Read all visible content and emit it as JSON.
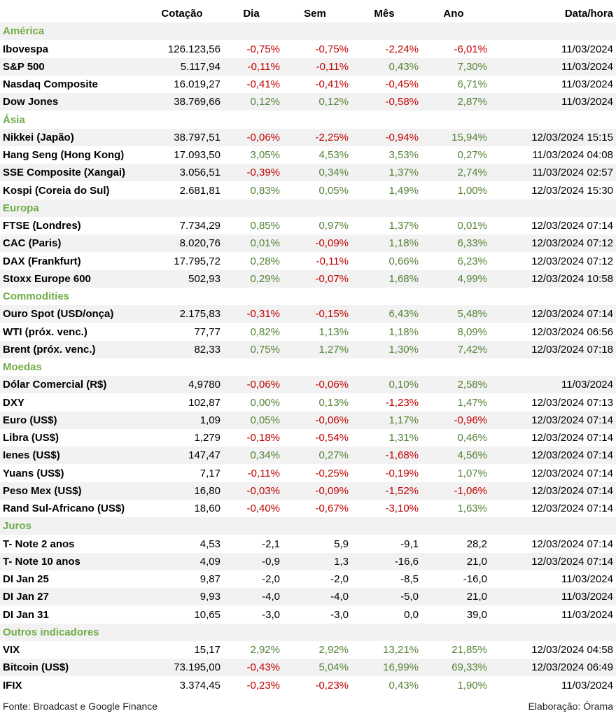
{
  "header": {
    "name": "",
    "cotacao": "Cotação",
    "dia": "Dia",
    "sem": "Sem",
    "mes": "Mês",
    "ano": "Ano",
    "datahora": "Data/hora"
  },
  "colors": {
    "positive": "#548235",
    "negative": "#c00000",
    "section": "#70ad47"
  },
  "sections": [
    {
      "title": "América",
      "rows": [
        {
          "name": "Ibovespa",
          "cotacao": "126.123,56",
          "dia": "-0,75%",
          "sem": "-0,75%",
          "mes": "-2,24%",
          "ano": "-6,01%",
          "datahora": "11/03/2024"
        },
        {
          "name": "S&P 500",
          "cotacao": "5.117,94",
          "dia": "-0,11%",
          "sem": "-0,11%",
          "mes": "0,43%",
          "ano": "7,30%",
          "datahora": "11/03/2024"
        },
        {
          "name": "Nasdaq Composite",
          "cotacao": "16.019,27",
          "dia": "-0,41%",
          "sem": "-0,41%",
          "mes": "-0,45%",
          "ano": "6,71%",
          "datahora": "11/03/2024"
        },
        {
          "name": "Dow Jones",
          "cotacao": "38.769,66",
          "dia": "0,12%",
          "sem": "0,12%",
          "mes": "-0,58%",
          "ano": "2,87%",
          "datahora": "11/03/2024"
        }
      ]
    },
    {
      "title": "Ásia",
      "rows": [
        {
          "name": "Nikkei (Japão)",
          "cotacao": "38.797,51",
          "dia": "-0,06%",
          "sem": "-2,25%",
          "mes": "-0,94%",
          "ano": "15,94%",
          "datahora": "12/03/2024 15:15"
        },
        {
          "name": "Hang Seng (Hong Kong)",
          "cotacao": "17.093,50",
          "dia": "3,05%",
          "sem": "4,53%",
          "mes": "3,53%",
          "ano": "0,27%",
          "datahora": "11/03/2024 04:08"
        },
        {
          "name": "SSE Composite (Xangai)",
          "cotacao": "3.056,51",
          "dia": "-0,39%",
          "sem": "0,34%",
          "mes": "1,37%",
          "ano": "2,74%",
          "datahora": "11/03/2024 02:57"
        },
        {
          "name": "Kospi (Coreia do Sul)",
          "cotacao": "2.681,81",
          "dia": "0,83%",
          "sem": "0,05%",
          "mes": "1,49%",
          "ano": "1,00%",
          "datahora": "12/03/2024 15:30"
        }
      ]
    },
    {
      "title": "Europa",
      "rows": [
        {
          "name": "FTSE (Londres)",
          "cotacao": "7.734,29",
          "dia": "0,85%",
          "sem": "0,97%",
          "mes": "1,37%",
          "ano": "0,01%",
          "datahora": "12/03/2024 07:14"
        },
        {
          "name": "CAC (Paris)",
          "cotacao": "8.020,76",
          "dia": "0,01%",
          "sem": "-0,09%",
          "mes": "1,18%",
          "ano": "6,33%",
          "datahora": "12/03/2024 07:12"
        },
        {
          "name": "DAX (Frankfurt)",
          "cotacao": "17.795,72",
          "dia": "0,28%",
          "sem": "-0,11%",
          "mes": "0,66%",
          "ano": "6,23%",
          "datahora": "12/03/2024 07:12"
        },
        {
          "name": "Stoxx Europe 600",
          "cotacao": "502,93",
          "dia": "0,29%",
          "sem": "-0,07%",
          "mes": "1,68%",
          "ano": "4,99%",
          "datahora": "12/03/2024 10:58"
        }
      ]
    },
    {
      "title": "Commodities",
      "rows": [
        {
          "name": "Ouro Spot (USD/onça)",
          "cotacao": "2.175,83",
          "dia": "-0,31%",
          "sem": "-0,15%",
          "mes": "6,43%",
          "ano": "5,48%",
          "datahora": "12/03/2024 07:14"
        },
        {
          "name": "WTI (próx. venc.)",
          "cotacao": "77,77",
          "dia": "0,82%",
          "sem": "1,13%",
          "mes": "1,18%",
          "ano": "8,09%",
          "datahora": "12/03/2024 06:56"
        },
        {
          "name": "Brent (próx. venc.)",
          "cotacao": "82,33",
          "dia": "0,75%",
          "sem": "1,27%",
          "mes": "1,30%",
          "ano": "7,42%",
          "datahora": "12/03/2024 07:18"
        }
      ]
    },
    {
      "title": "Moedas",
      "rows": [
        {
          "name": "Dólar Comercial (R$)",
          "cotacao": "4,9780",
          "dia": "-0,06%",
          "sem": "-0,06%",
          "mes": "0,10%",
          "ano": "2,58%",
          "datahora": "11/03/2024"
        },
        {
          "name": "DXY",
          "cotacao": "102,87",
          "dia": "0,00%",
          "sem": "0,13%",
          "mes": "-1,23%",
          "ano": "1,47%",
          "datahora": "12/03/2024 07:13"
        },
        {
          "name": "Euro (US$)",
          "cotacao": "1,09",
          "dia": "0,05%",
          "sem": "-0,06%",
          "mes": "1,17%",
          "ano": "-0,96%",
          "datahora": "12/03/2024 07:14"
        },
        {
          "name": "Libra (US$)",
          "cotacao": "1,279",
          "dia": "-0,18%",
          "sem": "-0,54%",
          "mes": "1,31%",
          "ano": "0,46%",
          "datahora": "12/03/2024 07:14"
        },
        {
          "name": "Ienes (US$)",
          "cotacao": "147,47",
          "dia": "0,34%",
          "sem": "0,27%",
          "mes": "-1,68%",
          "ano": "4,56%",
          "datahora": "12/03/2024 07:14"
        },
        {
          "name": "Yuans (US$)",
          "cotacao": "7,17",
          "dia": "-0,11%",
          "sem": "-0,25%",
          "mes": "-0,19%",
          "ano": "1,07%",
          "datahora": "12/03/2024 07:14"
        },
        {
          "name": "Peso Mex (US$)",
          "cotacao": "16,80",
          "dia": "-0,03%",
          "sem": "-0,09%",
          "mes": "-1,52%",
          "ano": "-1,06%",
          "datahora": "12/03/2024 07:14"
        },
        {
          "name": "Rand Sul-Africano (US$)",
          "cotacao": "18,60",
          "dia": "-0,40%",
          "sem": "-0,67%",
          "mes": "-3,10%",
          "ano": "1,63%",
          "datahora": "12/03/2024 07:14"
        }
      ]
    },
    {
      "title": "Juros",
      "plain": true,
      "rows": [
        {
          "name": "T- Note 2 anos",
          "cotacao": "4,53",
          "dia": "-2,1",
          "sem": "5,9",
          "mes": "-9,1",
          "ano": "28,2",
          "datahora": "12/03/2024 07:14"
        },
        {
          "name": "T- Note 10 anos",
          "cotacao": "4,09",
          "dia": "-0,9",
          "sem": "1,3",
          "mes": "-16,6",
          "ano": "21,0",
          "datahora": "12/03/2024 07:14"
        },
        {
          "name": "DI Jan 25",
          "cotacao": "9,87",
          "dia": "-2,0",
          "sem": "-2,0",
          "mes": "-8,5",
          "ano": "-16,0",
          "datahora": "11/03/2024"
        },
        {
          "name": "DI Jan 27",
          "cotacao": "9,93",
          "dia": "-4,0",
          "sem": "-4,0",
          "mes": "-5,0",
          "ano": "21,0",
          "datahora": "11/03/2024"
        },
        {
          "name": "DI Jan 31",
          "cotacao": "10,65",
          "dia": "-3,0",
          "sem": "-3,0",
          "mes": "0,0",
          "ano": "39,0",
          "datahora": "11/03/2024"
        }
      ]
    },
    {
      "title": "Outros indicadores",
      "rows": [
        {
          "name": "VIX",
          "cotacao": "15,17",
          "dia": "2,92%",
          "sem": "2,92%",
          "mes": "13,21%",
          "ano": "21,85%",
          "datahora": "12/03/2024 04:58"
        },
        {
          "name": "Bitcoin (US$)",
          "cotacao": "73.195,00",
          "dia": "-0,43%",
          "sem": "5,04%",
          "mes": "16,99%",
          "ano": "69,33%",
          "datahora": "12/03/2024 06:49"
        },
        {
          "name": "IFIX",
          "cotacao": "3.374,45",
          "dia": "-0,23%",
          "sem": "-0,23%",
          "mes": "0,43%",
          "ano": "1,90%",
          "datahora": "11/03/2024"
        }
      ]
    }
  ],
  "footer": {
    "source": "Fonte: Broadcast e Google Finance",
    "credit": "Elaboração: Órama"
  }
}
